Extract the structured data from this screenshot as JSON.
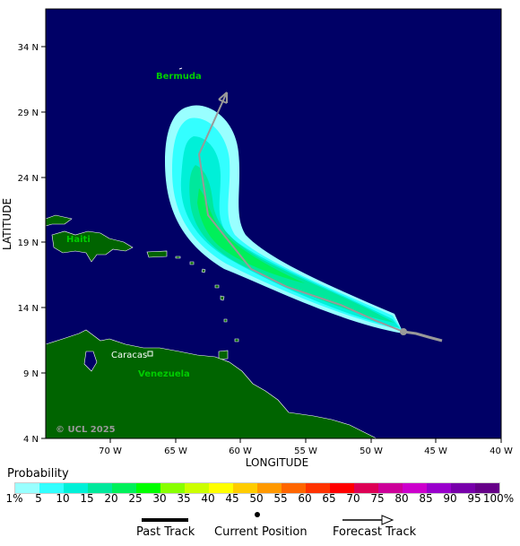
{
  "map": {
    "lat_ticks": [
      "34 N",
      "29 N",
      "24 N",
      "19 N",
      "14 N",
      "9 N",
      "4 N"
    ],
    "lon_ticks": [
      "70 W",
      "65 W",
      "60 W",
      "55 W",
      "50 W",
      "45 W",
      "40 W"
    ],
    "x_axis_title": "LONGITUDE",
    "y_axis_title": "LATITUDE",
    "places": {
      "bermuda": "Bermuda",
      "haiti": "Haiti",
      "caracas": "Caracas",
      "venezuela": "Venezuela"
    },
    "watermark": "© UCL 2025",
    "colors": {
      "ocean": "#000066",
      "land": "#006400",
      "track": "#999999"
    }
  },
  "legend": {
    "title": "Probability",
    "labels": [
      "1%",
      "5",
      "10",
      "15",
      "20",
      "25",
      "30",
      "35",
      "40",
      "45",
      "50",
      "55",
      "60",
      "65",
      "70",
      "75",
      "80",
      "85",
      "90",
      "95",
      "100%"
    ],
    "colors": [
      "#99ffff",
      "#33ffff",
      "#00f0d8",
      "#00e89c",
      "#00f05a",
      "#00ff00",
      "#88ff00",
      "#ccff00",
      "#ffff00",
      "#ffcc00",
      "#ff9900",
      "#ff6600",
      "#ff3300",
      "#ff0000",
      "#dd0055",
      "#cc0099",
      "#cc00cc",
      "#9900cc",
      "#7700aa",
      "#660088"
    ]
  },
  "keys": {
    "past_track": "Past Track",
    "current_position": "Current Position",
    "forecast_track": "Forecast Track"
  }
}
